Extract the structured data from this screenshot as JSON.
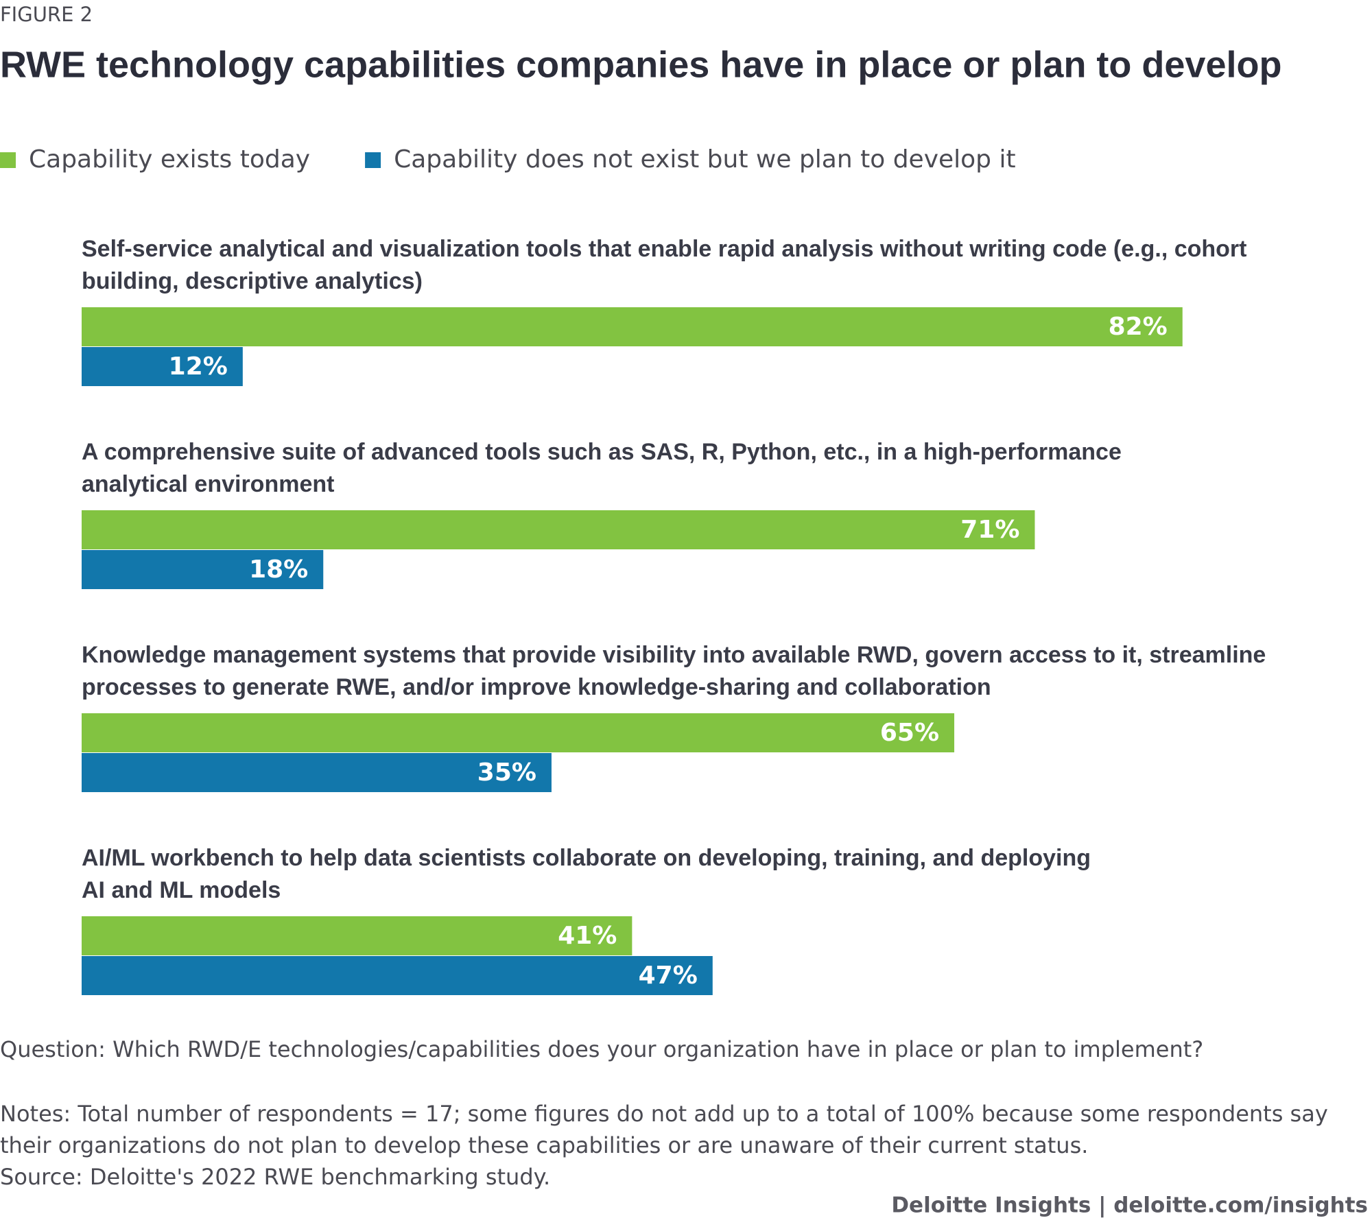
{
  "chart_data": {
    "type": "bar",
    "orientation": "horizontal",
    "kicker": "FIGURE 2",
    "title": "RWE technology capabilities companies have in place or plan to develop",
    "categories": [
      [
        "Self-service analytical and visualization tools that enable rapid analysis without writing code (e.g., cohort",
        "building, descriptive analytics)"
      ],
      [
        "A comprehensive suite of advanced tools such as SAS, R, Python, etc., in a high-performance",
        "analytical environment"
      ],
      [
        "Knowledge management systems that provide visibility into available RWD, govern access to it, streamline",
        "processes to generate RWE, and/or improve knowledge-sharing and collaboration"
      ],
      [
        "AI/ML workbench to help data scientists collaborate on developing, training, and deploying",
        "AI and ML models"
      ]
    ],
    "series": [
      {
        "name": "Capability exists today",
        "color": "#82c341",
        "values": [
          82,
          71,
          65,
          41
        ],
        "value_labels": [
          "82%",
          "71%",
          "65%",
          "41%"
        ]
      },
      {
        "name": "Capability does not exist but we plan to develop it",
        "color": "#1277ab",
        "values": [
          12,
          18,
          35,
          47
        ],
        "value_labels": [
          "12%",
          "18%",
          "35%",
          "47%"
        ]
      }
    ],
    "legend": "top-left",
    "question": "Question: Which RWD/E technologies/capabilities does your organization have in place or plan to implement?",
    "notes": [
      "Notes: Total number of respondents = 17; some figures do not add up to a total of 100% because some respondents say",
      "their organizations do not plan to develop these capabilities or are unaware of their current status."
    ],
    "source": "Source: Deloitte's 2022 RWE benchmarking study.",
    "credit": "Deloitte Insights | deloitte.com/insights"
  }
}
